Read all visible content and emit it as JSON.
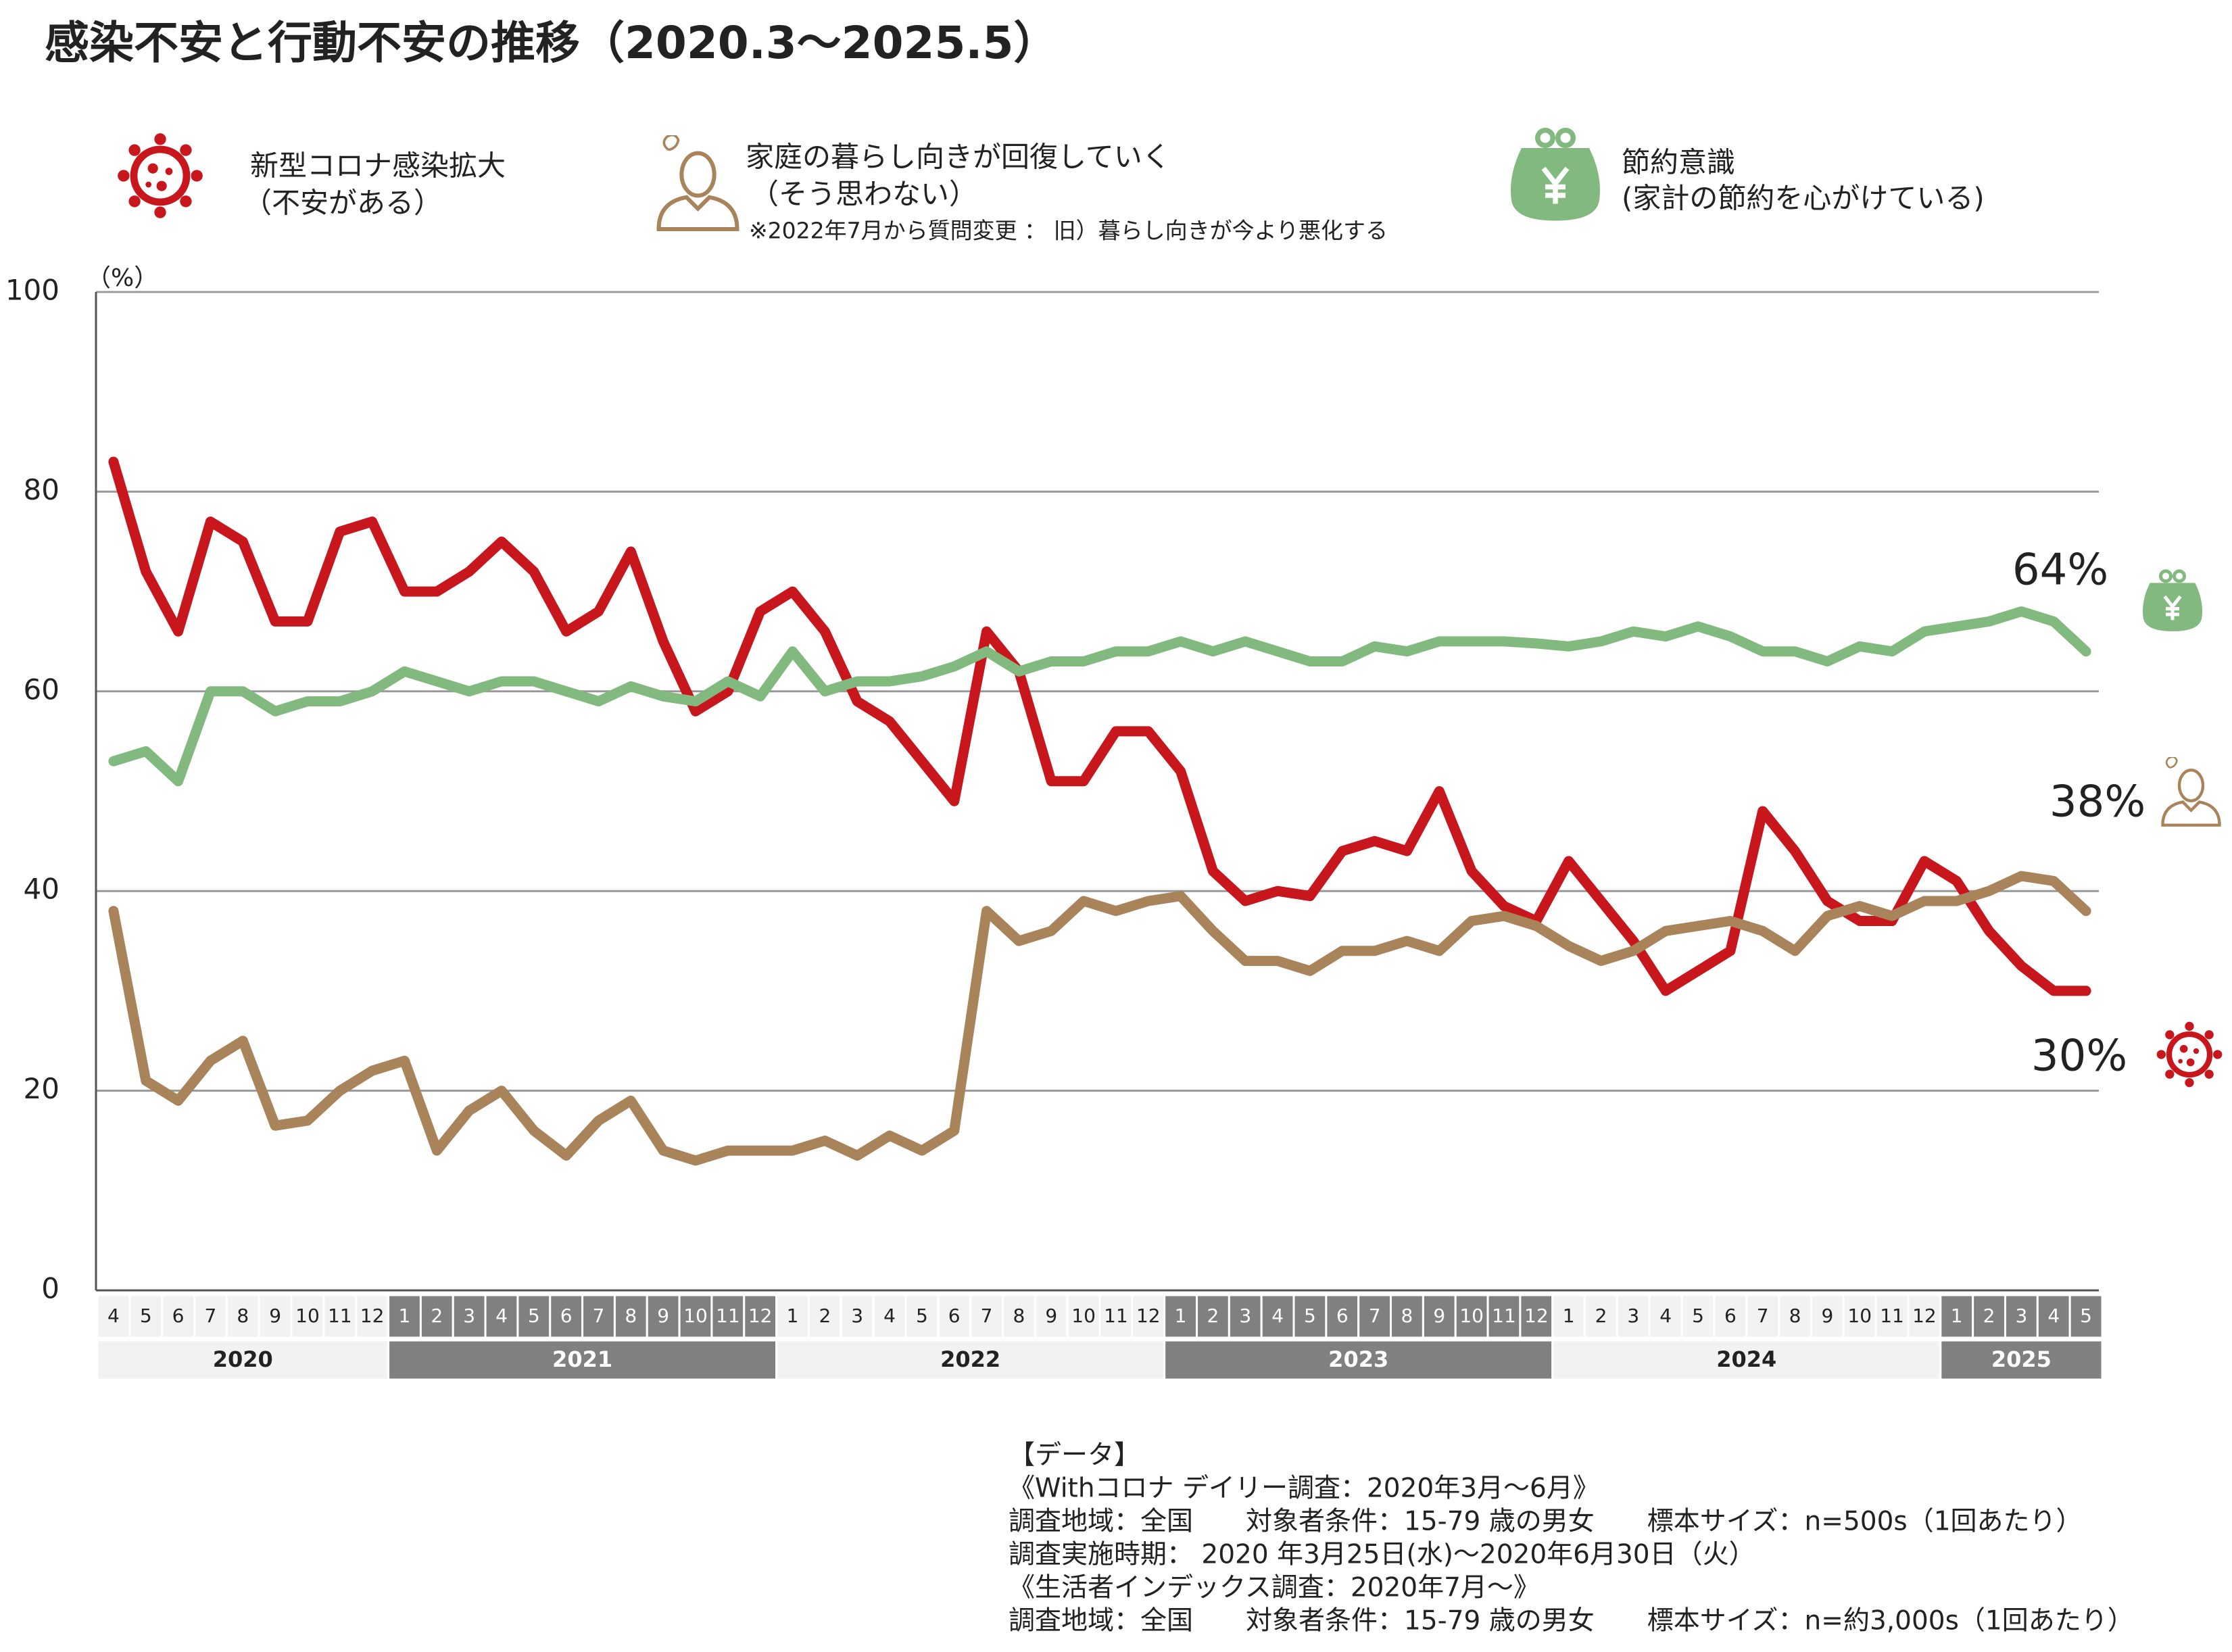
{
  "chart_data": {
    "type": "line",
    "title": "感染不安と行動不安の推移（2020.3～2025.5）",
    "y_unit": "（%）",
    "ylim": [
      0,
      100
    ],
    "yticks": [
      0,
      20,
      40,
      60,
      80,
      100
    ],
    "grid": true,
    "categories": [
      "4",
      "5",
      "6",
      "7",
      "8",
      "9",
      "10",
      "11",
      "12",
      "1",
      "2",
      "3",
      "4",
      "5",
      "6",
      "7",
      "8",
      "9",
      "10",
      "11",
      "12",
      "1",
      "2",
      "3",
      "4",
      "5",
      "6",
      "7",
      "8",
      "9",
      "10",
      "11",
      "12",
      "1",
      "2",
      "3",
      "4",
      "5",
      "6",
      "7",
      "8",
      "9",
      "10",
      "11",
      "12",
      "1",
      "2",
      "3",
      "4",
      "5",
      "6",
      "7",
      "8",
      "9",
      "10",
      "11",
      "12",
      "1",
      "2",
      "3",
      "4",
      "5"
    ],
    "years": [
      "2020",
      "2021",
      "2022",
      "2023",
      "2024",
      "2025"
    ],
    "series": [
      {
        "name": "新型コロナ感染拡大",
        "sub": "（不安がある）",
        "color": "#c8161d",
        "end_label": "30%",
        "values": [
          83,
          72,
          66,
          77,
          75,
          67,
          67,
          76,
          77,
          70,
          70,
          72,
          75,
          72,
          66,
          68,
          74,
          65,
          58,
          60,
          68,
          70,
          66,
          59,
          57,
          53,
          49,
          66,
          62,
          51,
          51,
          56,
          56,
          52,
          42,
          39,
          40,
          39.5,
          44,
          45,
          44,
          50,
          42,
          38.5,
          37,
          43,
          39,
          35,
          30,
          32,
          34,
          48,
          44,
          39,
          37,
          37,
          43,
          41,
          36,
          32.5,
          30,
          30
        ]
      },
      {
        "name": "家庭の暮らし向きが回復していく",
        "sub": "（そう思わない）",
        "note": "※2022年7月から質問変更 ： 旧）暮らし向きが今より悪化する",
        "color": "#a9845a",
        "end_label": "38%",
        "values": [
          38,
          21,
          19,
          23,
          25,
          16.5,
          17,
          20,
          22,
          23,
          14,
          18,
          20,
          16,
          13.5,
          17,
          19,
          14,
          13,
          14,
          14,
          14,
          15,
          13.5,
          15.5,
          14,
          16,
          38,
          35,
          36,
          39,
          38,
          39,
          39.5,
          36,
          33,
          33,
          32,
          34,
          34,
          35,
          34,
          37,
          37.5,
          36.5,
          34.5,
          33,
          34,
          36,
          36.5,
          37,
          36,
          34,
          37.5,
          38.5,
          37.5,
          39,
          39,
          40,
          41.5,
          41,
          38
        ]
      },
      {
        "name": "節約意識",
        "sub": "(家計の節約を心がけている)",
        "color": "#82b97f",
        "end_label": "64%",
        "values": [
          53,
          54,
          51,
          60,
          60,
          58,
          59,
          59,
          60,
          62,
          61,
          60,
          61,
          61,
          60,
          59,
          60.5,
          59.5,
          59,
          61,
          59.5,
          64,
          60,
          61,
          61,
          61.5,
          62.5,
          64,
          62,
          63,
          63,
          64,
          64,
          65,
          64,
          65,
          64,
          63,
          63,
          64.5,
          64,
          65,
          65,
          65,
          64.8,
          64.5,
          65,
          66,
          65.5,
          66.5,
          65.5,
          64,
          64,
          63,
          64.5,
          64,
          66,
          66.5,
          67,
          68,
          67,
          64
        ]
      }
    ],
    "footnote": [
      "【データ】",
      "《Withコロナ デイリー調査：2020年3月～6月》",
      "調査地域：全国　　対象者条件：15-79 歳の男女　　標本サイズ：n=500s（1回あたり）",
      "調査実施時期： 2020 年3月25日(水)～2020年6月30日（火）",
      "《生活者インデックス調査：2020年7月～》",
      "調査地域：全国　　対象者条件：15-79 歳の男女　　標本サイズ：n=約3,000s（1回あたり）"
    ]
  }
}
